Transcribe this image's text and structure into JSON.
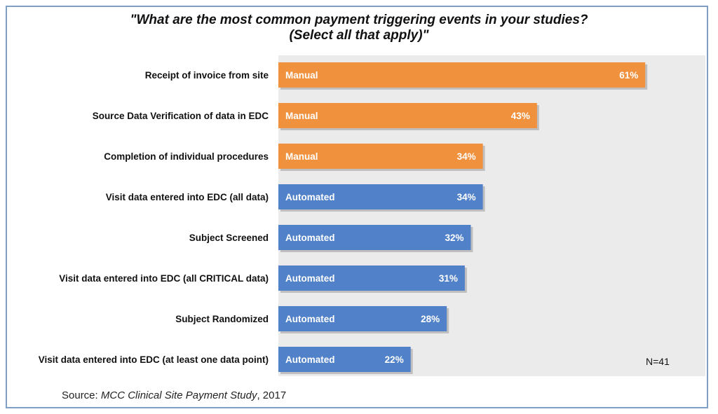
{
  "chart_data": {
    "type": "bar",
    "orientation": "horizontal",
    "title_line1": "\"What are the most common payment triggering events in your studies?",
    "title_line2": "(Select all that apply)\"",
    "categories": [
      "Receipt of invoice from site",
      "Source Data Verification of data in EDC",
      "Completion of individual procedures",
      "Visit data entered into EDC (all data)",
      "Subject Screened",
      "Visit data entered into EDC (all CRITICAL data)",
      "Subject Randomized",
      "Visit data entered into EDC (at least one data point)"
    ],
    "values": [
      61,
      43,
      34,
      34,
      32,
      31,
      28,
      22
    ],
    "value_labels": [
      "61%",
      "43%",
      "34%",
      "34%",
      "32%",
      "31%",
      "28%",
      "22%"
    ],
    "bar_types": [
      "Manual",
      "Manual",
      "Manual",
      "Automated",
      "Automated",
      "Automated",
      "Automated",
      "Automated"
    ],
    "colors": {
      "Manual": "#f0913e",
      "Automated": "#5181c8",
      "plot_bg": "#ebebeb",
      "border": "#7fa0c4"
    },
    "xlim": [
      0,
      71
    ],
    "grid": false,
    "legend": "none",
    "annotation": "N=41"
  },
  "source": {
    "prefix": "Source: ",
    "name": "MCC Clinical Site Payment Study",
    "suffix": ", 2017"
  }
}
